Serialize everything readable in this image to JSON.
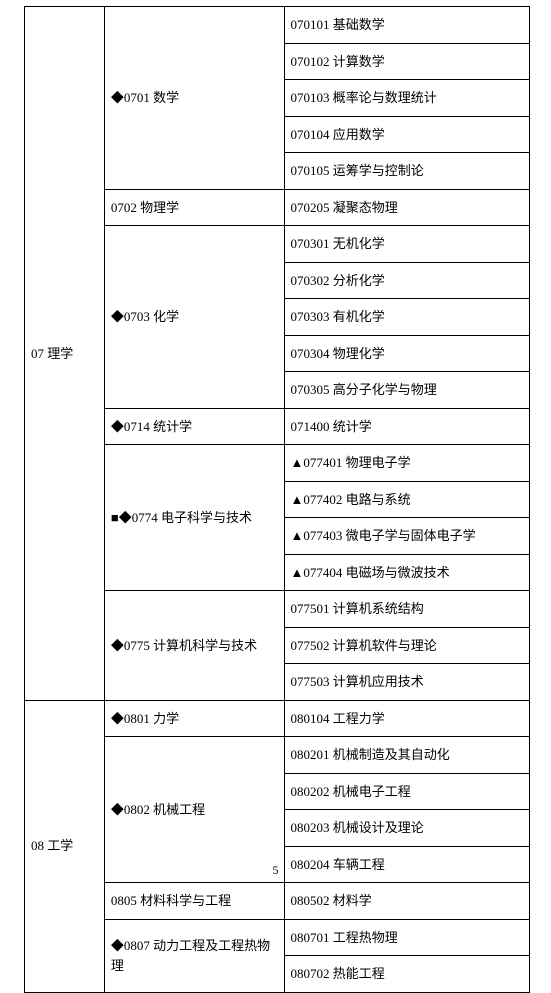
{
  "pageNumber": "5",
  "categories": [
    {
      "label": "07 理学",
      "subcategories": [
        {
          "label": "◆0701 数学",
          "items": [
            "070101 基础数学",
            "070102 计算数学",
            "070103 概率论与数理统计",
            "070104 应用数学",
            "070105 运筹学与控制论"
          ]
        },
        {
          "label": "0702 物理学",
          "items": [
            "070205 凝聚态物理"
          ]
        },
        {
          "label": "◆0703 化学",
          "items": [
            "070301 无机化学",
            "070302 分析化学",
            "070303 有机化学",
            "070304 物理化学",
            "070305 高分子化学与物理"
          ]
        },
        {
          "label": "◆0714 统计学",
          "items": [
            "071400 统计学"
          ]
        },
        {
          "label": "■◆0774 电子科学与技术",
          "items": [
            "▲077401 物理电子学",
            "▲077402 电路与系统",
            "▲077403 微电子学与固体电子学",
            "▲077404 电磁场与微波技术"
          ]
        },
        {
          "label": "◆0775  计算机科学与技术",
          "items": [
            "077501  计算机系统结构",
            "077502  计算机软件与理论",
            "077503  计算机应用技术"
          ]
        }
      ]
    },
    {
      "label": "08 工学",
      "subcategories": [
        {
          "label": "◆0801 力学",
          "items": [
            "080104 工程力学"
          ]
        },
        {
          "label": "◆0802 机械工程",
          "items": [
            "080201 机械制造及其自动化",
            "080202 机械电子工程",
            "080203 机械设计及理论",
            "080204 车辆工程"
          ]
        },
        {
          "label": "0805 材料科学与工程",
          "items": [
            "080502 材料学"
          ]
        },
        {
          "label": "◆0807 动力工程及工程热物理",
          "items": [
            "080701 工程热物理",
            "080702 热能工程"
          ]
        }
      ]
    }
  ]
}
